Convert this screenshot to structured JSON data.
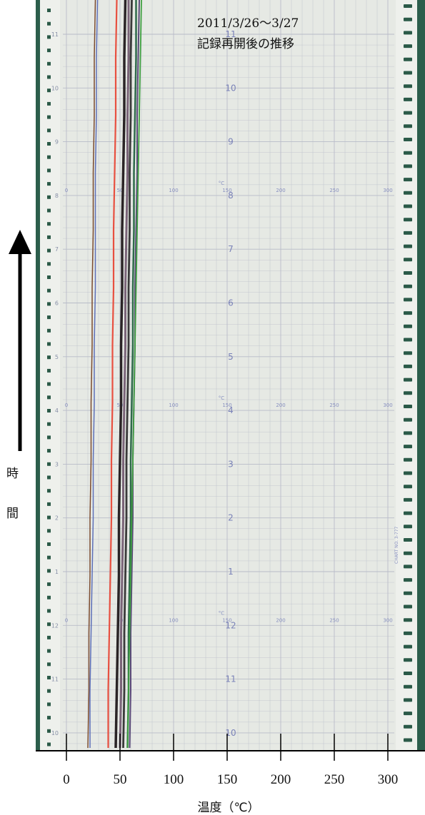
{
  "title_lines": [
    "2011/3/26～3/27",
    "記録再開後の推移"
  ],
  "axis_label_chars": [
    "時",
    "間"
  ],
  "chart_paper": {
    "hour_labels": [
      "11",
      "10",
      "9",
      "8",
      "7",
      "6",
      "5",
      "4",
      "3",
      "2",
      "1",
      "12",
      "11",
      "10"
    ],
    "left_hour_labels": [
      "11",
      "10",
      "9",
      "8",
      "7",
      "6",
      "5",
      "4",
      "3",
      "2",
      "1",
      "12",
      "11",
      "10"
    ],
    "scale_rows": [
      {
        "unit": "°C",
        "ticks": [
          "0",
          "50",
          "100",
          "150",
          "200",
          "250",
          "300"
        ]
      },
      {
        "unit": "°C",
        "ticks": [
          "0",
          "50",
          "100",
          "150",
          "200",
          "250",
          "300"
        ]
      },
      {
        "unit": "°C",
        "ticks": [
          "0",
          "50",
          "100",
          "150",
          "200",
          "250",
          "300"
        ]
      }
    ],
    "side_text": "CHART NO. 3-777"
  },
  "colors": {
    "frame": "#2c5e4c",
    "paper": "#e6e9e4",
    "grid": "#b8bcc8",
    "hole": "#2b5a48"
  },
  "chart_data": {
    "type": "line",
    "xlabel": "温度（℃）",
    "xticks": [
      0,
      50,
      100,
      150,
      200,
      250,
      300
    ],
    "xlim": [
      -17,
      330
    ],
    "y_orientation": "time increases upward",
    "y_hour_marks": [
      "10",
      "11",
      "12",
      "1",
      "2",
      "3",
      "4",
      "5",
      "6",
      "7",
      "8",
      "9",
      "10",
      "11"
    ],
    "series": [
      {
        "color": "#5d6fb8",
        "width": 1.5,
        "x": [
          22,
          22,
          23,
          24,
          25,
          25,
          26,
          26,
          27,
          27,
          27,
          28,
          28,
          29
        ]
      },
      {
        "color": "#7a4a2e",
        "width": 1.5,
        "x": [
          20,
          21,
          21,
          22,
          22,
          23,
          23,
          24,
          24,
          25,
          25,
          26,
          26,
          27
        ]
      },
      {
        "color": "#e85040",
        "width": 2.2,
        "x": [
          39,
          39,
          40,
          41,
          42,
          42,
          43,
          43,
          44,
          44,
          45,
          46,
          46,
          47
        ]
      },
      {
        "color": "#2a2426",
        "width": 3.5,
        "x": [
          46,
          47,
          48,
          49,
          49,
          50,
          51,
          51,
          52,
          52,
          53,
          54,
          54,
          55
        ]
      },
      {
        "color": "#7a6478",
        "width": 3.0,
        "x": [
          50,
          51,
          51,
          52,
          53,
          53,
          54,
          55,
          55,
          56,
          57,
          57,
          58,
          58
        ]
      },
      {
        "color": "#3a3a3a",
        "width": 2.8,
        "x": [
          53,
          54,
          54,
          55,
          56,
          56,
          57,
          58,
          58,
          59,
          59,
          60,
          60,
          61
        ]
      },
      {
        "color": "#2e6a4a",
        "width": 2.5,
        "x": [
          57,
          58,
          58,
          59,
          60,
          60,
          61,
          62,
          62,
          63,
          63,
          64,
          65,
          65
        ]
      },
      {
        "color": "#5a4a78",
        "width": 2.0,
        "x": [
          59,
          60,
          60,
          61,
          62,
          62,
          63,
          64,
          64,
          65,
          66,
          66,
          67,
          68
        ]
      },
      {
        "color": "#3fa040",
        "width": 1.8,
        "x": [
          57,
          58,
          59,
          60,
          61,
          62,
          63,
          64,
          65,
          66,
          67,
          68,
          69,
          70
        ]
      }
    ]
  }
}
